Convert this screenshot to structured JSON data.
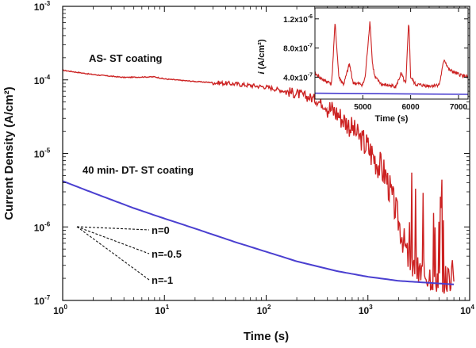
{
  "chart_data": {
    "main": {
      "type": "line",
      "xscale": "log",
      "yscale": "log",
      "xlabel": "Time (s)",
      "ylabel": "Current Density (A/cm²)",
      "xlim": [
        1,
        10000
      ],
      "ylim": [
        1e-07,
        0.001
      ],
      "x_ticks": [
        {
          "base": "10",
          "exp": "0"
        },
        {
          "base": "10",
          "exp": "1"
        },
        {
          "base": "10",
          "exp": "2"
        },
        {
          "base": "10",
          "exp": "3"
        },
        {
          "base": "10",
          "exp": "4"
        }
      ],
      "y_ticks": [
        {
          "base": "10",
          "exp": "-7"
        },
        {
          "base": "10",
          "exp": "-6"
        },
        {
          "base": "10",
          "exp": "-5"
        },
        {
          "base": "10",
          "exp": "-4"
        },
        {
          "base": "10",
          "exp": "-3"
        }
      ],
      "series": [
        {
          "name": "AS- ST coating",
          "color": "#cc2222",
          "points": [
            [
              1,
              0.000135
            ],
            [
              2,
              0.000118
            ],
            [
              4,
              0.000108
            ],
            [
              8,
              0.00011
            ],
            [
              10,
              0.000103
            ],
            [
              20,
              9.5e-05
            ],
            [
              50,
              8.8e-05
            ],
            [
              100,
              8e-05
            ],
            [
              200,
              6.5e-05
            ],
            [
              300,
              5.5e-05
            ],
            [
              500,
              3.5e-05
            ],
            [
              700,
              2.2e-05
            ],
            [
              1000,
              1.2e-05
            ],
            [
              1500,
              5e-06
            ],
            [
              2000,
              1.2e-06
            ],
            [
              2500,
              3.5e-07
            ],
            [
              3000,
              2.5e-07
            ],
            [
              4000,
              2.3e-07
            ],
            [
              5000,
              2.1e-07
            ],
            [
              6000,
              2e-07
            ],
            [
              7000,
              2.3e-07
            ]
          ]
        },
        {
          "name": "40 min- DT- ST coating",
          "color": "#4a3fd0",
          "points": [
            [
              1,
              4.2e-06
            ],
            [
              2,
              2.9e-06
            ],
            [
              5,
              1.8e-06
            ],
            [
              10,
              1.3e-06
            ],
            [
              20,
              9.5e-07
            ],
            [
              50,
              6.2e-07
            ],
            [
              100,
              4.6e-07
            ],
            [
              200,
              3.4e-07
            ],
            [
              500,
              2.5e-07
            ],
            [
              1000,
              2.1e-07
            ],
            [
              2000,
              1.85e-07
            ],
            [
              5000,
              1.7e-07
            ],
            [
              7000,
              1.65e-07
            ]
          ]
        }
      ],
      "annotations": [
        {
          "text": "AS- ST coating",
          "series": 0
        },
        {
          "text": "40 min- DT- ST coating",
          "series": 1
        },
        {
          "text": "n=0",
          "slope": 0
        },
        {
          "text": "n=-0.5",
          "slope": -0.5
        },
        {
          "text": "n=-1",
          "slope": -1
        }
      ]
    },
    "inset": {
      "type": "line",
      "xlabel": "Time (s)",
      "ylabel_italic": "i",
      "ylabel_rest": " (A/cm²)",
      "xlim": [
        4000,
        7200
      ],
      "ylim": [
        1e-07,
        1.35e-06
      ],
      "x_ticks": [
        "5000",
        "6000",
        "7000"
      ],
      "y_ticks": [
        {
          "mant": "4.0x10",
          "exp": "-7"
        },
        {
          "mant": "8.0x10",
          "exp": "-7"
        },
        {
          "mant": "1.2x10",
          "exp": "-6"
        }
      ],
      "series": [
        {
          "name": "AS- ST coating",
          "color": "#cc2222",
          "points": [
            [
              4000,
              4.5e-07
            ],
            [
              4200,
              3.5e-07
            ],
            [
              4350,
              3.2e-07
            ],
            [
              4420,
              1.15e-06
            ],
            [
              4500,
              4e-07
            ],
            [
              4600,
              3e-07
            ],
            [
              4720,
              5.8e-07
            ],
            [
              4800,
              3.2e-07
            ],
            [
              5000,
              3e-07
            ],
            [
              5050,
              4e-07
            ],
            [
              5150,
              1.18e-06
            ],
            [
              5200,
              6e-07
            ],
            [
              5250,
              4e-07
            ],
            [
              5400,
              3e-07
            ],
            [
              5600,
              2.8e-07
            ],
            [
              5700,
              2.8e-07
            ],
            [
              5800,
              4.5e-07
            ],
            [
              5900,
              3e-07
            ],
            [
              5960,
              1.2e-06
            ],
            [
              6000,
              4e-07
            ],
            [
              6100,
              3e-07
            ],
            [
              6400,
              2.8e-07
            ],
            [
              6600,
              3e-07
            ],
            [
              6700,
              6.5e-07
            ],
            [
              6800,
              5e-07
            ],
            [
              7000,
              4.4e-07
            ],
            [
              7200,
              4e-07
            ]
          ]
        },
        {
          "name": "40 min- DT- ST coating",
          "color": "#4a3fd0",
          "points": [
            [
              4000,
              1.8e-07
            ],
            [
              7200,
              1.65e-07
            ]
          ]
        }
      ]
    }
  }
}
